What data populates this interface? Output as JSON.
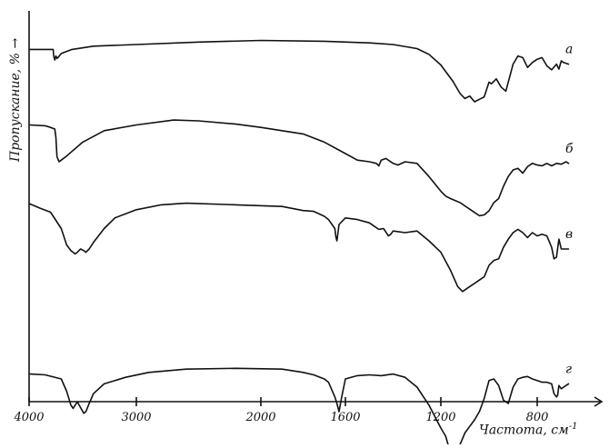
{
  "chart_data": {
    "type": "line",
    "ylabel": "Пропускание, % →",
    "xlabel": "Частота, см",
    "xlabel_exp": "-1",
    "x_ticks": [
      "4000",
      "3000",
      "2000",
      "1600",
      "1200",
      "800"
    ],
    "x_tick_values": [
      4000,
      3000,
      2000,
      1600,
      1200,
      800
    ],
    "xlim": [
      4000,
      600
    ],
    "x_axis": "piecewise: 4000–2000 compressed, 2000–600 expanded",
    "grid": false,
    "legend": "none (curve letters at right)",
    "series": [
      {
        "name": "а",
        "points": [
          [
            3990,
            84
          ],
          [
            3775,
            84
          ],
          [
            3770,
            76
          ],
          [
            3760,
            71
          ],
          [
            3750,
            76
          ],
          [
            3740,
            73
          ],
          [
            3725,
            75
          ],
          [
            3700,
            79
          ],
          [
            3600,
            84
          ],
          [
            3400,
            88
          ],
          [
            3000,
            90
          ],
          [
            2500,
            93
          ],
          [
            2000,
            95
          ],
          [
            1700,
            94
          ],
          [
            1500,
            92
          ],
          [
            1400,
            90
          ],
          [
            1300,
            85
          ],
          [
            1250,
            78
          ],
          [
            1200,
            65
          ],
          [
            1150,
            45
          ],
          [
            1120,
            30
          ],
          [
            1100,
            24
          ],
          [
            1080,
            27
          ],
          [
            1060,
            20
          ],
          [
            1040,
            23
          ],
          [
            1020,
            26
          ],
          [
            1000,
            44
          ],
          [
            990,
            42
          ],
          [
            970,
            48
          ],
          [
            950,
            38
          ],
          [
            930,
            33
          ],
          [
            900,
            66
          ],
          [
            880,
            76
          ],
          [
            860,
            74
          ],
          [
            840,
            62
          ],
          [
            820,
            68
          ],
          [
            800,
            72
          ],
          [
            780,
            74
          ],
          [
            760,
            64
          ],
          [
            740,
            59
          ],
          [
            720,
            66
          ],
          [
            710,
            60
          ],
          [
            700,
            70
          ],
          [
            690,
            68
          ],
          [
            670,
            66
          ]
        ]
      },
      {
        "name": "б",
        "points": [
          [
            3990,
            85
          ],
          [
            3850,
            84
          ],
          [
            3800,
            82
          ],
          [
            3760,
            80
          ],
          [
            3750,
            70
          ],
          [
            3740,
            46
          ],
          [
            3720,
            40
          ],
          [
            3700,
            42
          ],
          [
            3650,
            47
          ],
          [
            3500,
            64
          ],
          [
            3300,
            78
          ],
          [
            3000,
            85
          ],
          [
            2700,
            91
          ],
          [
            2500,
            90
          ],
          [
            2200,
            86
          ],
          [
            2000,
            82
          ],
          [
            1800,
            74
          ],
          [
            1700,
            64
          ],
          [
            1600,
            50
          ],
          [
            1550,
            42
          ],
          [
            1500,
            40
          ],
          [
            1470,
            38
          ],
          [
            1460,
            35
          ],
          [
            1450,
            42
          ],
          [
            1430,
            44
          ],
          [
            1400,
            38
          ],
          [
            1380,
            36
          ],
          [
            1350,
            40
          ],
          [
            1300,
            38
          ],
          [
            1250,
            22
          ],
          [
            1200,
            4
          ],
          [
            1180,
            -2
          ],
          [
            1160,
            -5
          ],
          [
            1120,
            -10
          ],
          [
            1100,
            -14
          ],
          [
            1080,
            -18
          ],
          [
            1060,
            -22
          ],
          [
            1040,
            -26
          ],
          [
            1020,
            -25
          ],
          [
            1000,
            -20
          ],
          [
            980,
            -10
          ],
          [
            960,
            -5
          ],
          [
            940,
            10
          ],
          [
            920,
            22
          ],
          [
            900,
            30
          ],
          [
            880,
            32
          ],
          [
            860,
            26
          ],
          [
            840,
            34
          ],
          [
            820,
            38
          ],
          [
            800,
            36
          ],
          [
            780,
            35
          ],
          [
            760,
            38
          ],
          [
            740,
            35
          ],
          [
            720,
            38
          ],
          [
            700,
            37
          ],
          [
            680,
            40
          ],
          [
            670,
            38
          ]
        ]
      },
      {
        "name": "в",
        "points": [
          [
            3990,
            65
          ],
          [
            3900,
            60
          ],
          [
            3800,
            55
          ],
          [
            3700,
            35
          ],
          [
            3650,
            15
          ],
          [
            3610,
            8
          ],
          [
            3590,
            6
          ],
          [
            3570,
            4
          ],
          [
            3550,
            6
          ],
          [
            3520,
            10
          ],
          [
            3490,
            8
          ],
          [
            3470,
            6
          ],
          [
            3440,
            10
          ],
          [
            3400,
            18
          ],
          [
            3300,
            35
          ],
          [
            3200,
            48
          ],
          [
            3000,
            58
          ],
          [
            2800,
            64
          ],
          [
            2600,
            66
          ],
          [
            2200,
            64
          ],
          [
            1900,
            62
          ],
          [
            1800,
            57
          ],
          [
            1750,
            56
          ],
          [
            1700,
            50
          ],
          [
            1680,
            46
          ],
          [
            1650,
            35
          ],
          [
            1645,
            25
          ],
          [
            1640,
            20
          ],
          [
            1630,
            40
          ],
          [
            1600,
            48
          ],
          [
            1550,
            46
          ],
          [
            1500,
            42
          ],
          [
            1480,
            38
          ],
          [
            1460,
            34
          ],
          [
            1440,
            35
          ],
          [
            1420,
            26
          ],
          [
            1410,
            28
          ],
          [
            1400,
            32
          ],
          [
            1350,
            30
          ],
          [
            1300,
            32
          ],
          [
            1250,
            20
          ],
          [
            1200,
            6
          ],
          [
            1160,
            -16
          ],
          [
            1130,
            -36
          ],
          [
            1110,
            -42
          ],
          [
            1090,
            -38
          ],
          [
            1060,
            -32
          ],
          [
            1040,
            -28
          ],
          [
            1020,
            -24
          ],
          [
            1000,
            -10
          ],
          [
            980,
            -4
          ],
          [
            960,
            -2
          ],
          [
            940,
            12
          ],
          [
            920,
            22
          ],
          [
            900,
            30
          ],
          [
            880,
            34
          ],
          [
            860,
            30
          ],
          [
            840,
            24
          ],
          [
            820,
            30
          ],
          [
            800,
            26
          ],
          [
            780,
            28
          ],
          [
            760,
            26
          ],
          [
            740,
            12
          ],
          [
            730,
            -2
          ],
          [
            720,
            0
          ],
          [
            710,
            22
          ],
          [
            700,
            10
          ],
          [
            690,
            10
          ],
          [
            670,
            10
          ]
        ]
      },
      {
        "name": "г",
        "points": [
          [
            3990,
            -24
          ],
          [
            3850,
            -25
          ],
          [
            3700,
            -30
          ],
          [
            3650,
            -45
          ],
          [
            3610,
            -62
          ],
          [
            3590,
            -66
          ],
          [
            3570,
            -62
          ],
          [
            3550,
            -58
          ],
          [
            3520,
            -65
          ],
          [
            3490,
            -72
          ],
          [
            3470,
            -70
          ],
          [
            3440,
            -60
          ],
          [
            3400,
            -48
          ],
          [
            3300,
            -36
          ],
          [
            3100,
            -28
          ],
          [
            2900,
            -22
          ],
          [
            2600,
            -18
          ],
          [
            2200,
            -17
          ],
          [
            1900,
            -18
          ],
          [
            1800,
            -22
          ],
          [
            1750,
            -25
          ],
          [
            1700,
            -30
          ],
          [
            1680,
            -34
          ],
          [
            1650,
            -52
          ],
          [
            1640,
            -60
          ],
          [
            1630,
            -70
          ],
          [
            1620,
            -55
          ],
          [
            1600,
            -30
          ],
          [
            1550,
            -26
          ],
          [
            1500,
            -25
          ],
          [
            1450,
            -26
          ],
          [
            1400,
            -24
          ],
          [
            1350,
            -28
          ],
          [
            1300,
            -40
          ],
          [
            1250,
            -62
          ],
          [
            1200,
            -90
          ],
          [
            1180,
            -100
          ],
          [
            1170,
            -110
          ],
          [
            1160,
            -118
          ],
          [
            1150,
            -122
          ],
          [
            1140,
            -120
          ],
          [
            1120,
            -110
          ],
          [
            1100,
            -96
          ],
          [
            1080,
            -88
          ],
          [
            1060,
            -80
          ],
          [
            1040,
            -70
          ],
          [
            1020,
            -54
          ],
          [
            1000,
            -32
          ],
          [
            980,
            -30
          ],
          [
            960,
            -38
          ],
          [
            940,
            -56
          ],
          [
            920,
            -60
          ],
          [
            900,
            -40
          ],
          [
            880,
            -30
          ],
          [
            860,
            -28
          ],
          [
            840,
            -27
          ],
          [
            820,
            -30
          ],
          [
            800,
            -32
          ],
          [
            780,
            -34
          ],
          [
            760,
            -34
          ],
          [
            740,
            -36
          ],
          [
            730,
            -48
          ],
          [
            720,
            -52
          ],
          [
            715,
            -50
          ],
          [
            710,
            -38
          ],
          [
            700,
            -42
          ],
          [
            690,
            -40
          ],
          [
            680,
            -38
          ],
          [
            670,
            -36
          ]
        ]
      }
    ]
  }
}
